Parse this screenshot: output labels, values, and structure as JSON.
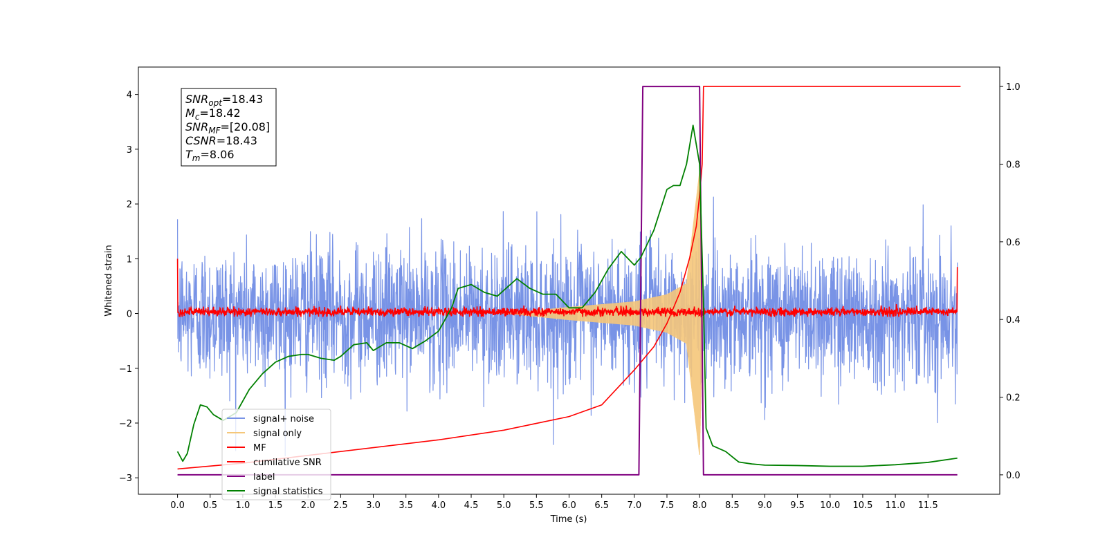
{
  "chart_data": {
    "type": "line",
    "title": "",
    "xlabel": "Time (s)",
    "ylabel": "Whitened strain",
    "xlim": [
      -0.6,
      12.6
    ],
    "ylim": [
      -3.3,
      4.5
    ],
    "y2lim": [
      -0.05,
      1.05
    ],
    "x_ticks": [
      "0.0",
      "0.5",
      "1.0",
      "1.5",
      "2.0",
      "2.5",
      "3.0",
      "3.5",
      "4.0",
      "4.5",
      "5.0",
      "5.5",
      "6.0",
      "6.5",
      "7.0",
      "7.5",
      "8.0",
      "8.5",
      "9.0",
      "9.5",
      "10.0",
      "10.5",
      "11.0",
      "11.5"
    ],
    "y_ticks": [
      "−3",
      "−2",
      "−1",
      "0",
      "1",
      "2",
      "3",
      "4"
    ],
    "y2_ticks": [
      "0.0",
      "0.2",
      "0.4",
      "0.6",
      "0.8",
      "1.0"
    ],
    "grid": false,
    "legend_position": "lower-left",
    "annotation": {
      "lines": [
        {
          "var": "SNR",
          "sub": "opt",
          "value": "=18.43"
        },
        {
          "var": "M",
          "sub": "c",
          "value": "=18.42"
        },
        {
          "var": "SNR",
          "sub": "MF",
          "value": "=[20.08]"
        },
        {
          "var": "CSNR",
          "sub": "",
          "value": "=18.43"
        },
        {
          "var": "T",
          "sub": "m",
          "value": "=8.06"
        }
      ]
    },
    "series": [
      {
        "name": "signal+ noise",
        "color": "#7893e6",
        "axis": "left",
        "description_stats": {
          "band": [
            -1.5,
            1.5
          ],
          "peak_max": 2.75,
          "peak_min": -2.9
        }
      },
      {
        "name": "signal only",
        "color": "#f5c77a",
        "axis": "left",
        "chirp_amplitude": {
          "t": [
            6.0,
            7.0,
            7.5,
            7.8,
            8.0,
            8.05
          ],
          "amp": [
            0.12,
            0.22,
            0.35,
            0.55,
            2.6,
            0.0
          ]
        }
      },
      {
        "name": "MF",
        "color": "#ff0000",
        "axis": "left",
        "band": [
          -0.06,
          0.12
        ],
        "edges": {
          "start": 1.0,
          "end": 0.85
        }
      },
      {
        "name": "cumilative SNR",
        "color": "#ff0000",
        "axis": "right",
        "x": [
          0.0,
          1.0,
          2.0,
          3.0,
          4.0,
          5.0,
          6.0,
          6.5,
          7.0,
          7.3,
          7.5,
          7.7,
          7.85,
          7.95,
          8.0,
          8.04,
          8.06,
          12.0
        ],
        "y": [
          0.015,
          0.03,
          0.05,
          0.07,
          0.09,
          0.115,
          0.15,
          0.18,
          0.27,
          0.33,
          0.39,
          0.47,
          0.56,
          0.64,
          0.72,
          0.8,
          1.0,
          1.0
        ]
      },
      {
        "name": "label",
        "color": "#800080",
        "axis": "right",
        "x": [
          0.0,
          7.07,
          7.13,
          8.0,
          8.06,
          11.95
        ],
        "y": [
          0.0,
          0.0,
          1.0,
          1.0,
          0.0,
          0.0
        ]
      },
      {
        "name": "signal statistics",
        "color": "#008000",
        "axis": "right",
        "x": [
          0.0,
          0.08,
          0.15,
          0.25,
          0.35,
          0.45,
          0.55,
          0.7,
          0.9,
          1.1,
          1.3,
          1.5,
          1.7,
          1.9,
          2.0,
          2.2,
          2.4,
          2.5,
          2.7,
          2.9,
          3.0,
          3.2,
          3.4,
          3.6,
          3.8,
          4.0,
          4.1,
          4.2,
          4.3,
          4.5,
          4.7,
          4.9,
          5.1,
          5.2,
          5.4,
          5.6,
          5.8,
          6.0,
          6.2,
          6.4,
          6.6,
          6.8,
          7.0,
          7.1,
          7.3,
          7.5,
          7.6,
          7.7,
          7.8,
          7.9,
          8.0,
          8.06,
          8.1,
          8.2,
          8.4,
          8.6,
          8.8,
          9.0,
          9.5,
          10.0,
          10.5,
          11.0,
          11.5,
          11.95
        ],
        "y": [
          0.06,
          0.035,
          0.055,
          0.13,
          0.18,
          0.175,
          0.155,
          0.14,
          0.16,
          0.22,
          0.26,
          0.29,
          0.305,
          0.31,
          0.31,
          0.3,
          0.295,
          0.305,
          0.335,
          0.34,
          0.32,
          0.34,
          0.34,
          0.325,
          0.345,
          0.37,
          0.4,
          0.43,
          0.48,
          0.49,
          0.47,
          0.46,
          0.49,
          0.505,
          0.48,
          0.465,
          0.465,
          0.43,
          0.43,
          0.47,
          0.53,
          0.575,
          0.54,
          0.56,
          0.63,
          0.735,
          0.745,
          0.745,
          0.8,
          0.9,
          0.8,
          0.44,
          0.12,
          0.075,
          0.06,
          0.033,
          0.028,
          0.025,
          0.024,
          0.022,
          0.022,
          0.026,
          0.032,
          0.043
        ]
      }
    ]
  }
}
